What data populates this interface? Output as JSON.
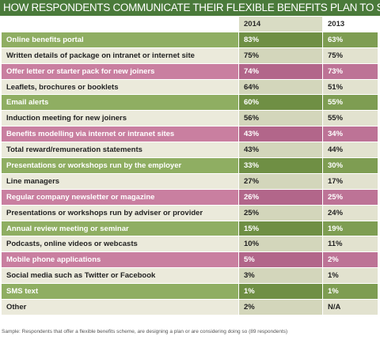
{
  "title": "HOW RESPONDENTS COMMUNICATE THEIR FLEXIBLE BENEFITS PLAN TO STAFF",
  "colors": {
    "title_bg": "#4a7a3a",
    "green_row": "#8fae62",
    "cream_row": "#ebeadb",
    "pink_row": "#c97fa0"
  },
  "chart_data": {
    "type": "table",
    "columns": [
      "",
      "2014",
      "2013"
    ],
    "rows": [
      {
        "label": "Online benefits portal",
        "y2014": "83%",
        "y2013": "63%",
        "style": "green"
      },
      {
        "label": "Written details of package on intranet or internet site",
        "y2014": "75%",
        "y2013": "75%",
        "style": "cream"
      },
      {
        "label": "Offer letter or starter pack for new joiners",
        "y2014": "74%",
        "y2013": "73%",
        "style": "pink"
      },
      {
        "label": "Leaflets, brochures or booklets",
        "y2014": "64%",
        "y2013": "51%",
        "style": "cream"
      },
      {
        "label": "Email alerts",
        "y2014": "60%",
        "y2013": "55%",
        "style": "green"
      },
      {
        "label": "Induction meeting for new joiners",
        "y2014": "56%",
        "y2013": "55%",
        "style": "cream"
      },
      {
        "label": "Benefits modelling via internet or intranet sites",
        "y2014": "43%",
        "y2013": "34%",
        "style": "pink"
      },
      {
        "label": "Total reward/remuneration statements",
        "y2014": "43%",
        "y2013": "44%",
        "style": "cream"
      },
      {
        "label": "Presentations or workshops run by the employer",
        "y2014": "33%",
        "y2013": "30%",
        "style": "green"
      },
      {
        "label": "Line managers",
        "y2014": "27%",
        "y2013": "17%",
        "style": "cream"
      },
      {
        "label": "Regular company newsletter or magazine",
        "y2014": "26%",
        "y2013": "25%",
        "style": "pink"
      },
      {
        "label": "Presentations or workshops run by adviser or provider",
        "y2014": "25%",
        "y2013": "24%",
        "style": "cream"
      },
      {
        "label": "Annual review meeting or seminar",
        "y2014": "15%",
        "y2013": "19%",
        "style": "green"
      },
      {
        "label": "Podcasts, online videos or webcasts",
        "y2014": "10%",
        "y2013": "11%",
        "style": "cream"
      },
      {
        "label": "Mobile phone applications",
        "y2014": "5%",
        "y2013": "2%",
        "style": "pink"
      },
      {
        "label": "Social media such as Twitter or Facebook",
        "y2014": "3%",
        "y2013": "1%",
        "style": "cream"
      },
      {
        "label": "SMS text",
        "y2014": "1%",
        "y2013": "1%",
        "style": "green"
      },
      {
        "label": "Other",
        "y2014": "2%",
        "y2013": "N/A",
        "style": "cream"
      }
    ]
  },
  "footnote": "Sample: Respondents that offer a flexible benefits scheme, are designing a plan or are considering doing so (89 respondents)"
}
